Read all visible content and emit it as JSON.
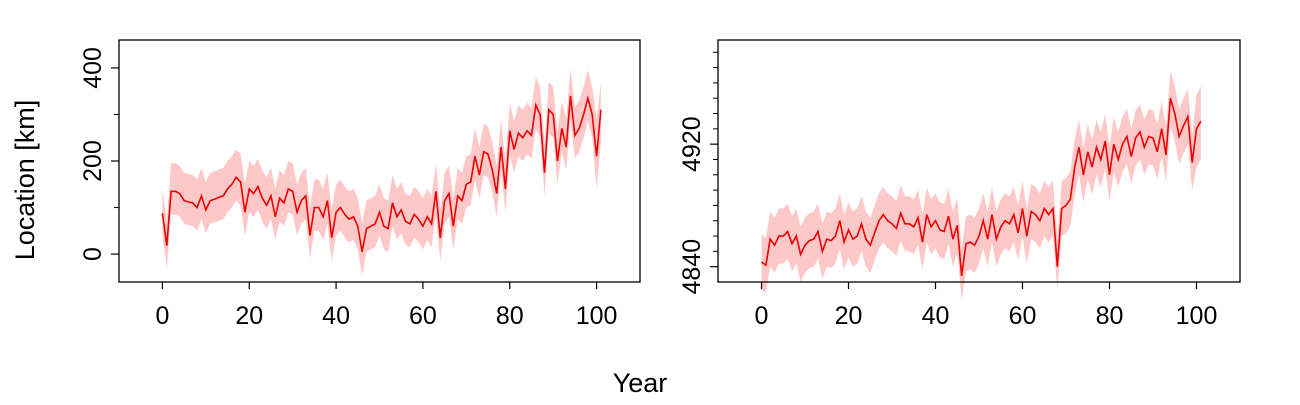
{
  "figure": {
    "shared_xlabel": "Year",
    "shared_ylabel": "Location [km]"
  },
  "colors": {
    "line": "#ee0000",
    "band": "#ffc8c8",
    "axes": "#000000"
  },
  "chart_data": [
    {
      "type": "line",
      "title": "",
      "xlabel": "Year",
      "ylabel": "Location [km]",
      "xlim": [
        -10,
        110
      ],
      "ylim": [
        -60,
        460
      ],
      "xticks": [
        0,
        20,
        40,
        60,
        80,
        100
      ],
      "yticks": [
        0,
        200,
        400
      ],
      "yminor": [
        100,
        300
      ],
      "grid": false,
      "band": "uncertainty band around estimate",
      "x": [
        0,
        1,
        2,
        3,
        4,
        5,
        6,
        7,
        8,
        9,
        10,
        11,
        12,
        13,
        14,
        15,
        16,
        17,
        18,
        19,
        20,
        21,
        22,
        23,
        24,
        25,
        26,
        27,
        28,
        29,
        30,
        31,
        32,
        33,
        34,
        35,
        36,
        37,
        38,
        39,
        40,
        41,
        42,
        43,
        44,
        45,
        46,
        47,
        48,
        49,
        50,
        51,
        52,
        53,
        54,
        55,
        56,
        57,
        58,
        59,
        60,
        61,
        62,
        63,
        64,
        65,
        66,
        67,
        68,
        69,
        70,
        71,
        72,
        73,
        74,
        75,
        76,
        77,
        78,
        79,
        80,
        81,
        82,
        83,
        84,
        85,
        86,
        87,
        88,
        89,
        90,
        91,
        92,
        93,
        94,
        95,
        96,
        97,
        98,
        99,
        100,
        101
      ],
      "series": [
        {
          "values": [
            88,
            18,
            135,
            135,
            130,
            115,
            112,
            110,
            100,
            125,
            95,
            115,
            118,
            122,
            125,
            140,
            150,
            165,
            155,
            90,
            140,
            130,
            145,
            120,
            105,
            125,
            80,
            120,
            110,
            140,
            135,
            90,
            115,
            125,
            40,
            100,
            100,
            80,
            115,
            35,
            90,
            100,
            85,
            75,
            80,
            60,
            5,
            55,
            60,
            65,
            90,
            60,
            55,
            110,
            80,
            95,
            70,
            65,
            85,
            75,
            60,
            80,
            65,
            135,
            35,
            115,
            130,
            60,
            125,
            115,
            150,
            155,
            210,
            170,
            220,
            215,
            180,
            130,
            230,
            140,
            265,
            225,
            260,
            250,
            265,
            255,
            320,
            300,
            175,
            310,
            300,
            200,
            270,
            230,
            340,
            255,
            270,
            300,
            335,
            300,
            210,
            310
          ],
          "lower": [
            40,
            -30,
            85,
            85,
            80,
            65,
            62,
            60,
            50,
            75,
            45,
            65,
            68,
            72,
            75,
            90,
            100,
            115,
            105,
            40,
            90,
            80,
            95,
            70,
            55,
            75,
            30,
            70,
            60,
            90,
            85,
            40,
            65,
            75,
            -10,
            50,
            50,
            30,
            65,
            -15,
            40,
            50,
            35,
            25,
            30,
            10,
            -45,
            5,
            10,
            15,
            40,
            10,
            5,
            60,
            30,
            45,
            20,
            15,
            35,
            25,
            10,
            30,
            15,
            85,
            -15,
            65,
            80,
            10,
            75,
            65,
            100,
            105,
            160,
            120,
            170,
            165,
            130,
            80,
            180,
            90,
            215,
            175,
            210,
            200,
            215,
            205,
            270,
            250,
            125,
            260,
            250,
            150,
            220,
            180,
            290,
            205,
            220,
            250,
            285,
            250,
            140,
            240
          ],
          "upper": [
            140,
            70,
            195,
            195,
            190,
            175,
            172,
            170,
            160,
            185,
            155,
            175,
            178,
            182,
            185,
            200,
            210,
            225,
            215,
            150,
            200,
            190,
            205,
            180,
            165,
            185,
            140,
            180,
            170,
            200,
            195,
            150,
            175,
            185,
            100,
            160,
            160,
            140,
            175,
            95,
            150,
            160,
            145,
            135,
            140,
            120,
            65,
            115,
            120,
            125,
            150,
            120,
            115,
            170,
            140,
            155,
            130,
            125,
            145,
            135,
            120,
            140,
            125,
            195,
            95,
            175,
            190,
            120,
            185,
            175,
            210,
            215,
            270,
            230,
            280,
            275,
            240,
            190,
            290,
            200,
            325,
            285,
            320,
            310,
            325,
            315,
            380,
            360,
            235,
            370,
            360,
            260,
            330,
            290,
            400,
            315,
            330,
            360,
            395,
            360,
            290,
            370
          ]
        }
      ]
    },
    {
      "type": "line",
      "title": "",
      "xlabel": "Year",
      "ylabel": "",
      "xlim": [
        -10,
        110
      ],
      "ylim": [
        4830,
        4988
      ],
      "xticks": [
        0,
        20,
        40,
        60,
        80,
        100
      ],
      "yticks": [
        4840,
        4920
      ],
      "yminor": [
        4850,
        4860,
        4870,
        4880,
        4890,
        4900,
        4910,
        4930,
        4940,
        4950,
        4960,
        4970,
        4980
      ],
      "grid": false,
      "band": "uncertainty band around estimate",
      "x": [
        0,
        1,
        2,
        3,
        4,
        5,
        6,
        7,
        8,
        9,
        10,
        11,
        12,
        13,
        14,
        15,
        16,
        17,
        18,
        19,
        20,
        21,
        22,
        23,
        24,
        25,
        26,
        27,
        28,
        29,
        30,
        31,
        32,
        33,
        34,
        35,
        36,
        37,
        38,
        39,
        40,
        41,
        42,
        43,
        44,
        45,
        46,
        47,
        48,
        49,
        50,
        51,
        52,
        53,
        54,
        55,
        56,
        57,
        58,
        59,
        60,
        61,
        62,
        63,
        64,
        65,
        66,
        67,
        68,
        69,
        70,
        71,
        72,
        73,
        74,
        75,
        76,
        77,
        78,
        79,
        80,
        81,
        82,
        83,
        84,
        85,
        86,
        87,
        88,
        89,
        90,
        91,
        92,
        93,
        94,
        95,
        96,
        97,
        98,
        99,
        100,
        101
      ],
      "series": [
        {
          "values": [
            4843,
            4841,
            4858,
            4854,
            4860,
            4860,
            4863,
            4855,
            4860,
            4848,
            4854,
            4857,
            4858,
            4863,
            4850,
            4858,
            4857,
            4860,
            4870,
            4856,
            4864,
            4858,
            4860,
            4868,
            4858,
            4854,
            4862,
            4870,
            4874,
            4870,
            4868,
            4865,
            4875,
            4868,
            4868,
            4866,
            4872,
            4856,
            4874,
            4866,
            4870,
            4864,
            4863,
            4873,
            4858,
            4867,
            4834,
            4855,
            4856,
            4854,
            4860,
            4870,
            4858,
            4874,
            4858,
            4866,
            4870,
            4868,
            4874,
            4862,
            4878,
            4860,
            4876,
            4874,
            4870,
            4878,
            4874,
            4878,
            4840,
            4878,
            4880,
            4884,
            4905,
            4918,
            4900,
            4915,
            4905,
            4918,
            4910,
            4922,
            4900,
            4920,
            4910,
            4920,
            4925,
            4912,
            4924,
            4928,
            4918,
            4925,
            4924,
            4915,
            4930,
            4913,
            4950,
            4940,
            4925,
            4932,
            4938,
            4908,
            4930,
            4935
          ],
          "lower": [
            4825,
            4823,
            4840,
            4836,
            4842,
            4842,
            4845,
            4837,
            4842,
            4830,
            4836,
            4839,
            4840,
            4845,
            4832,
            4840,
            4839,
            4842,
            4852,
            4838,
            4846,
            4840,
            4842,
            4850,
            4840,
            4836,
            4844,
            4852,
            4856,
            4852,
            4850,
            4847,
            4857,
            4850,
            4850,
            4848,
            4854,
            4838,
            4856,
            4848,
            4852,
            4846,
            4845,
            4855,
            4840,
            4849,
            4818,
            4837,
            4838,
            4836,
            4842,
            4852,
            4840,
            4856,
            4840,
            4848,
            4852,
            4850,
            4856,
            4844,
            4860,
            4842,
            4858,
            4856,
            4852,
            4860,
            4856,
            4860,
            4825,
            4860,
            4862,
            4866,
            4887,
            4900,
            4882,
            4897,
            4887,
            4900,
            4892,
            4904,
            4882,
            4902,
            4892,
            4902,
            4907,
            4894,
            4906,
            4910,
            4900,
            4907,
            4906,
            4897,
            4912,
            4895,
            4932,
            4922,
            4907,
            4914,
            4920,
            4890,
            4905,
            4910
          ],
          "upper": [
            4861,
            4859,
            4876,
            4872,
            4878,
            4878,
            4881,
            4873,
            4878,
            4866,
            4872,
            4875,
            4876,
            4881,
            4868,
            4876,
            4875,
            4878,
            4888,
            4874,
            4882,
            4876,
            4878,
            4886,
            4876,
            4872,
            4880,
            4888,
            4892,
            4888,
            4886,
            4883,
            4893,
            4886,
            4886,
            4884,
            4890,
            4874,
            4892,
            4884,
            4888,
            4882,
            4881,
            4891,
            4876,
            4885,
            4852,
            4873,
            4874,
            4872,
            4878,
            4888,
            4876,
            4892,
            4876,
            4884,
            4888,
            4886,
            4892,
            4880,
            4896,
            4878,
            4894,
            4892,
            4888,
            4896,
            4892,
            4896,
            4858,
            4896,
            4898,
            4902,
            4923,
            4936,
            4918,
            4933,
            4923,
            4936,
            4928,
            4940,
            4918,
            4938,
            4928,
            4938,
            4943,
            4930,
            4942,
            4946,
            4936,
            4943,
            4942,
            4933,
            4948,
            4931,
            4968,
            4958,
            4943,
            4950,
            4956,
            4926,
            4952,
            4958
          ]
        }
      ]
    }
  ]
}
